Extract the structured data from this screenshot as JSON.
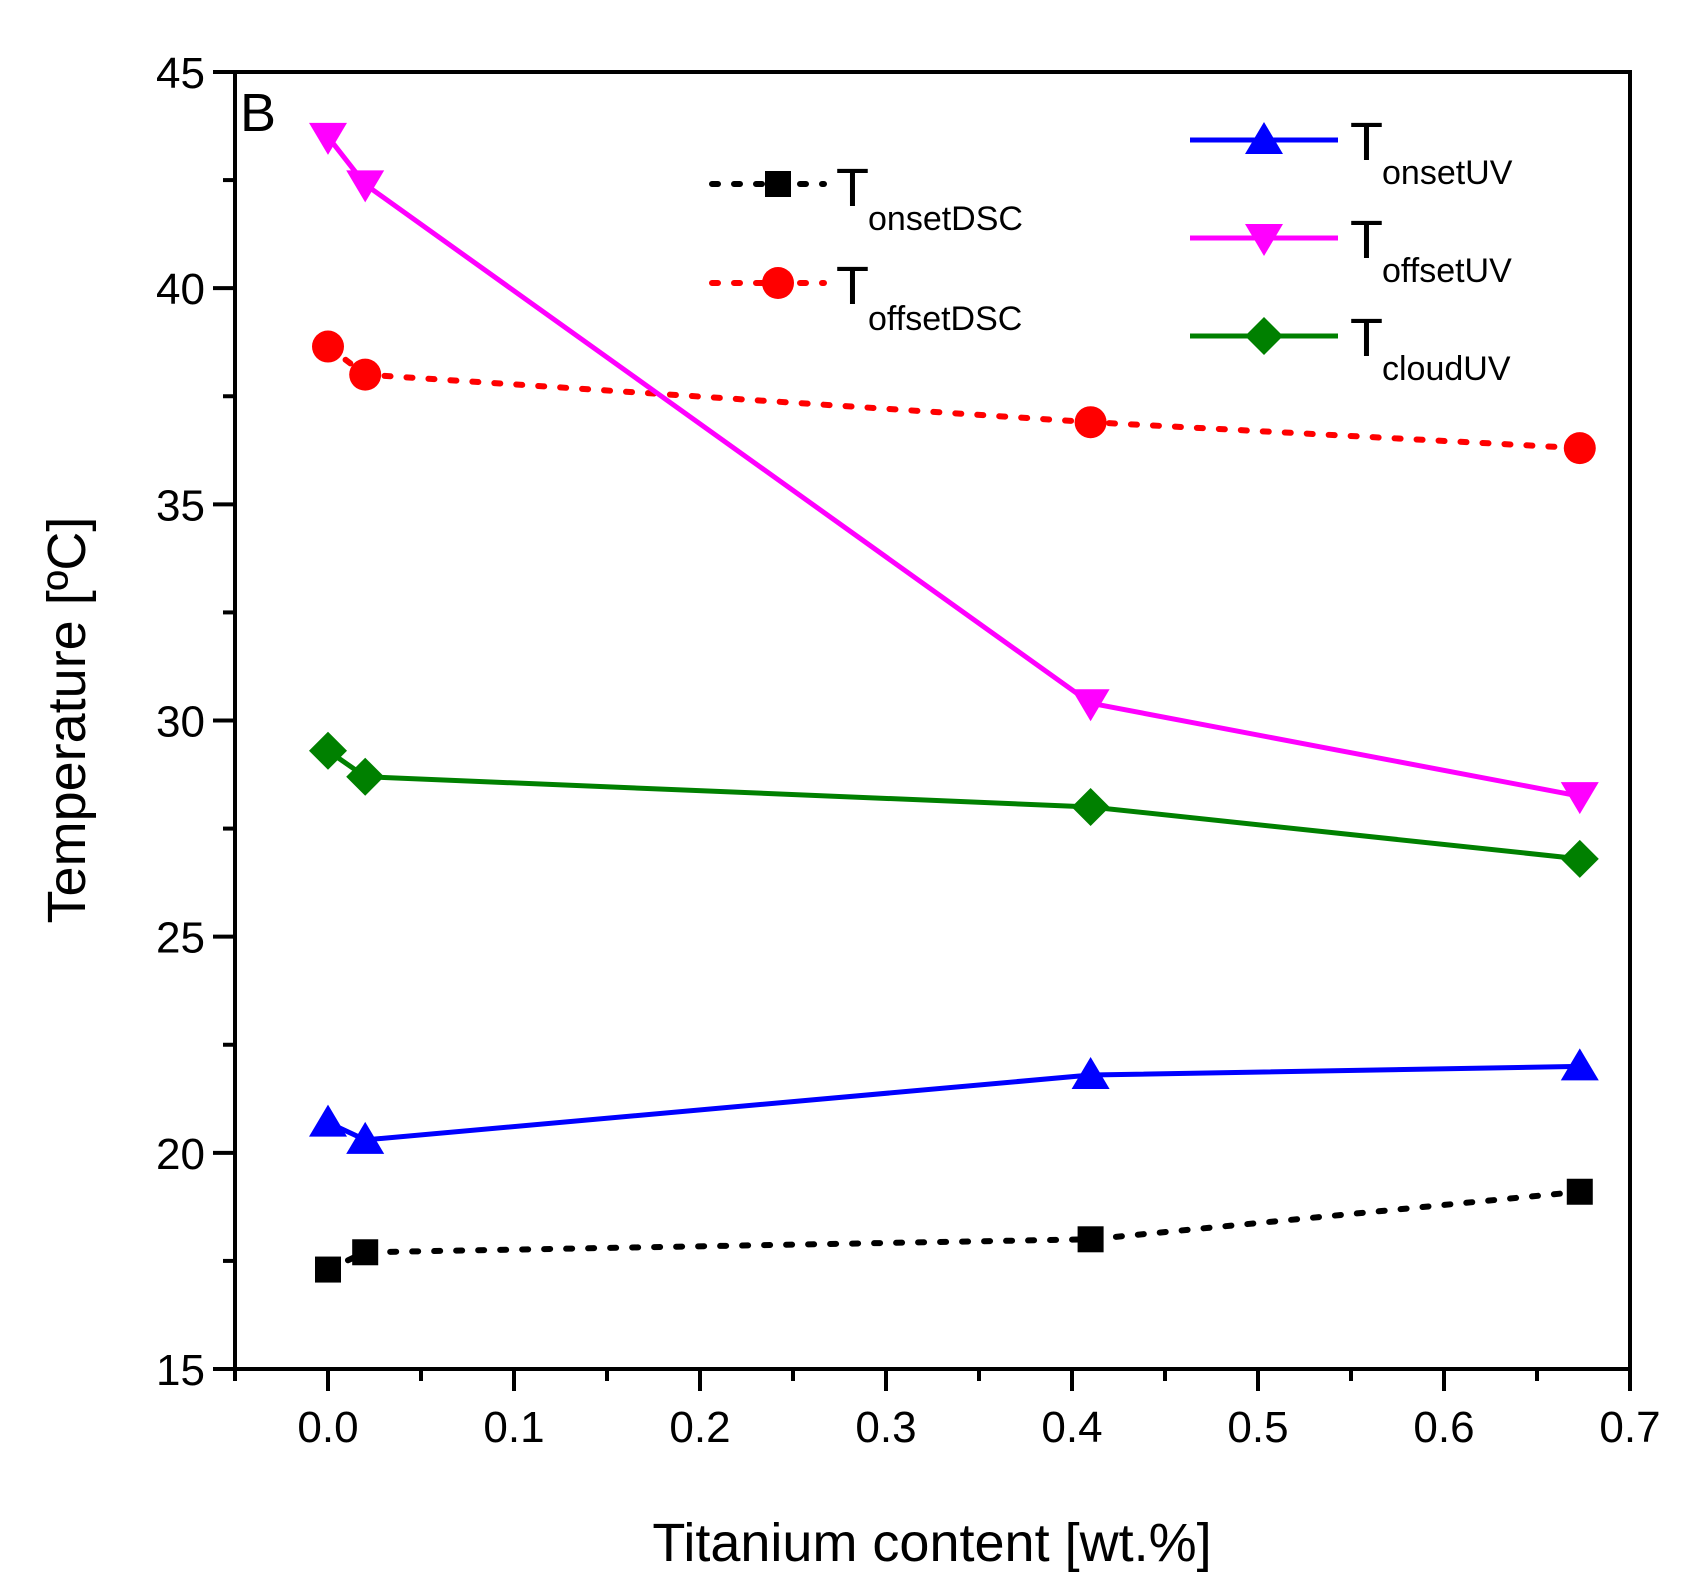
{
  "chart_data": {
    "type": "line",
    "panel_label": "B",
    "xlabel": "Titanium content [wt.%]",
    "ylabel": "Temperature [ºC]",
    "xlim": [
      -0.05,
      0.7
    ],
    "ylim": [
      15,
      45
    ],
    "xticks": [
      0.0,
      0.1,
      0.2,
      0.3,
      0.4,
      0.5,
      0.6,
      0.7
    ],
    "xtick_labels": [
      "0.0",
      "0.1",
      "0.2",
      "0.3",
      "0.4",
      "0.5",
      "0.6",
      "0.7"
    ],
    "yticks": [
      15,
      20,
      25,
      30,
      35,
      40,
      45
    ],
    "ytick_labels": [
      "15",
      "20",
      "25",
      "30",
      "35",
      "40",
      "45"
    ],
    "grid": false,
    "series": [
      {
        "id": "onset-dsc",
        "legend_main": "T",
        "legend_sub": "onsetDSC",
        "color": "#000000",
        "line": "dotted",
        "marker": "square",
        "points": [
          [
            0.0,
            17.3
          ],
          [
            0.02,
            17.7
          ],
          [
            0.41,
            18.0
          ],
          [
            0.673,
            19.1
          ]
        ]
      },
      {
        "id": "offset-dsc",
        "legend_main": "T",
        "legend_sub": "offsetDSC",
        "color": "#ff0000",
        "line": "dotted",
        "marker": "circle",
        "points": [
          [
            0.0,
            38.65
          ],
          [
            0.02,
            38.0
          ],
          [
            0.41,
            36.9
          ],
          [
            0.673,
            36.3
          ]
        ]
      },
      {
        "id": "onset-uv",
        "legend_main": "T",
        "legend_sub": "onsetUV",
        "color": "#0000ff",
        "line": "solid",
        "marker": "triangle-up",
        "points": [
          [
            0.0,
            20.7
          ],
          [
            0.02,
            20.3
          ],
          [
            0.41,
            21.8
          ],
          [
            0.673,
            22.0
          ]
        ]
      },
      {
        "id": "offset-uv",
        "legend_main": "T",
        "legend_sub": "offsetUV",
        "color": "#ff00ff",
        "line": "solid",
        "marker": "triangle-down",
        "points": [
          [
            0.0,
            43.5
          ],
          [
            0.02,
            42.4
          ],
          [
            0.41,
            30.4
          ],
          [
            0.673,
            28.25
          ]
        ]
      },
      {
        "id": "cloud-uv",
        "legend_main": "T",
        "legend_sub": "cloudUV",
        "color": "#008000",
        "line": "solid",
        "marker": "diamond",
        "points": [
          [
            0.0,
            29.3
          ],
          [
            0.02,
            28.7
          ],
          [
            0.41,
            28.0
          ],
          [
            0.673,
            26.8
          ]
        ]
      }
    ]
  }
}
